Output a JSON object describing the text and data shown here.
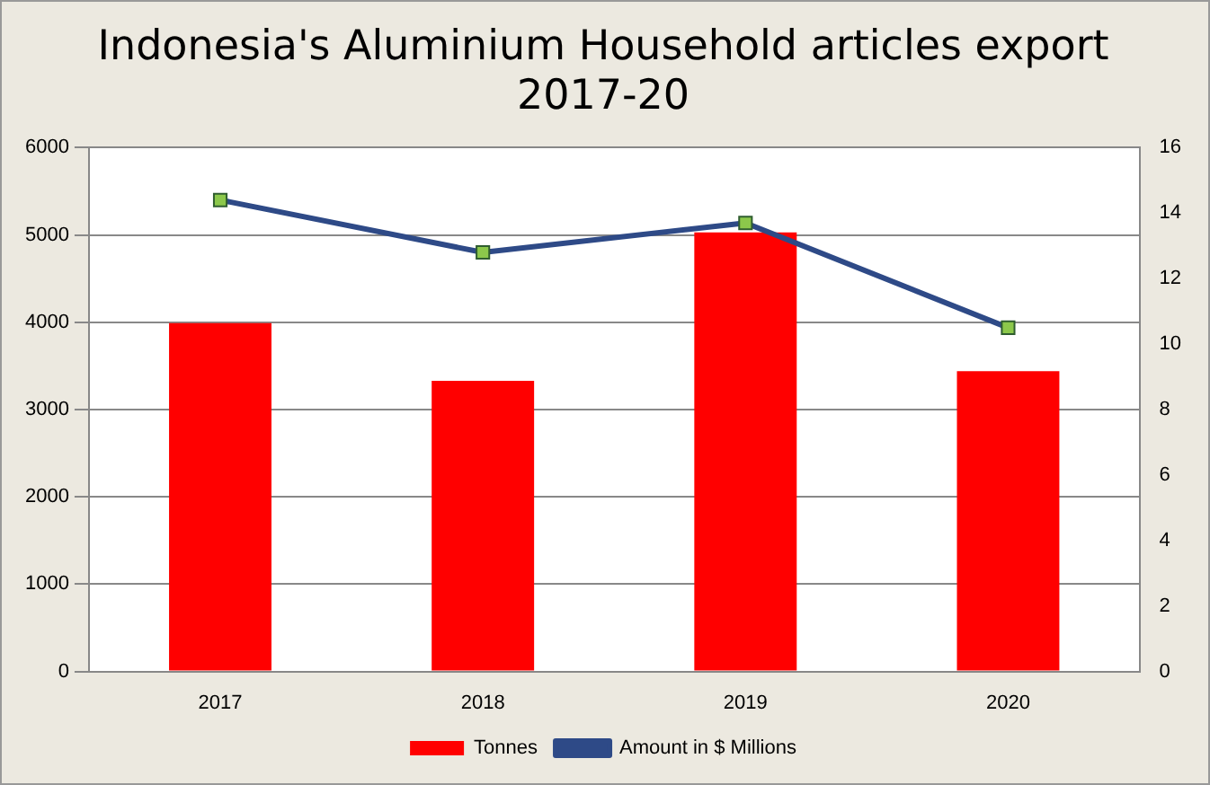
{
  "chart_data": {
    "type": "bar",
    "title": "Indonesia's Aluminium Household articles export\n2017-20",
    "categories": [
      "2017",
      "2018",
      "2019",
      "2020"
    ],
    "series": [
      {
        "name": "Tonnes",
        "color": "#ff0000",
        "values": [
          3990,
          3330,
          5030,
          3440
        ]
      },
      {
        "name": "Amount in $ Millions",
        "type": "line",
        "axis": "y2",
        "color": "#2e4a87",
        "values": [
          14.4,
          12.8,
          13.7,
          10.5
        ]
      }
    ],
    "ylim": [
      0,
      6000
    ],
    "yticks": [
      0,
      1000,
      2000,
      3000,
      4000,
      5000,
      6000
    ],
    "y2lim": [
      0,
      16
    ],
    "y2ticks": [
      0,
      2,
      4,
      6,
      8,
      10,
      12,
      14,
      16
    ],
    "grid": "y",
    "legend": "bottom",
    "marker": "square"
  }
}
